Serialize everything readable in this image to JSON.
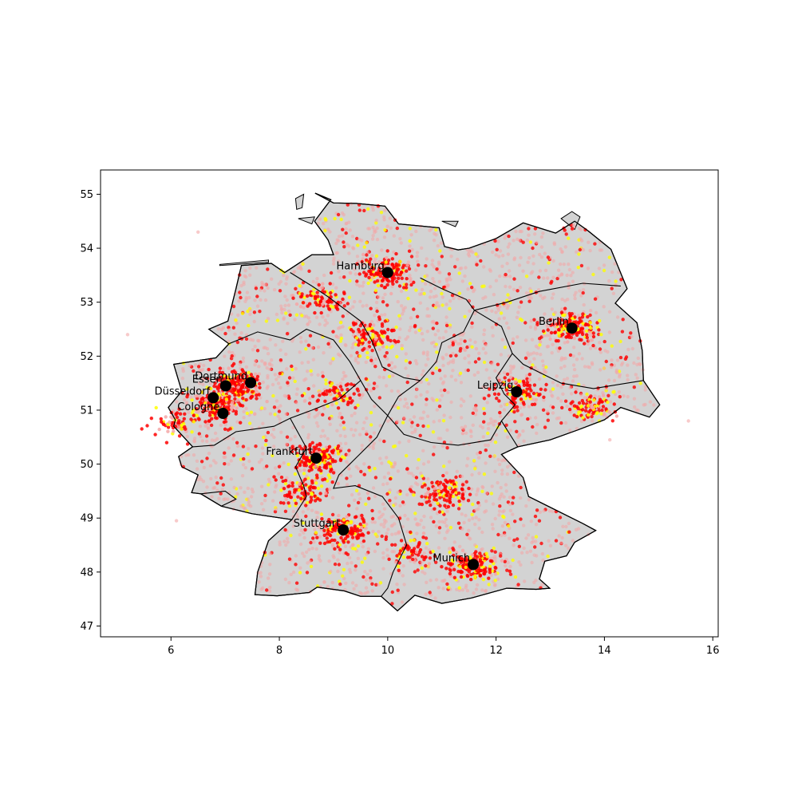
{
  "chart_data": {
    "type": "scatter",
    "title": "",
    "xlabel": "",
    "ylabel": "",
    "xlim": [
      4.7,
      16.1
    ],
    "ylim": [
      46.8,
      55.45
    ],
    "grid": false,
    "x_ticks": [
      6,
      8,
      10,
      12,
      14,
      16
    ],
    "y_ticks": [
      47,
      48,
      49,
      50,
      51,
      52,
      53,
      54,
      55
    ],
    "x_tick_labels": [
      "6",
      "8",
      "10",
      "12",
      "14",
      "16"
    ],
    "y_tick_labels": [
      "47",
      "48",
      "49",
      "50",
      "51",
      "52",
      "53",
      "54",
      "55"
    ],
    "colors": {
      "land": "#d3d3d3",
      "border": "#000000",
      "point_light": "#f4a6a6",
      "point_red": "#ff0000",
      "point_yellow": "#ffff00",
      "city_marker": "#000000"
    },
    "cities": [
      {
        "name": "Hamburg",
        "lon": 10.0,
        "lat": 53.55
      },
      {
        "name": "Berlin",
        "lon": 13.4,
        "lat": 52.52
      },
      {
        "name": "Dortmund",
        "lon": 7.47,
        "lat": 51.51
      },
      {
        "name": "Essen",
        "lon": 7.01,
        "lat": 51.45
      },
      {
        "name": "Düsseldorf",
        "lon": 6.78,
        "lat": 51.23
      },
      {
        "name": "Cologne",
        "lon": 6.96,
        "lat": 50.94
      },
      {
        "name": "Leipzig",
        "lon": 12.38,
        "lat": 51.34
      },
      {
        "name": "Frankfurt",
        "lon": 8.68,
        "lat": 50.11
      },
      {
        "name": "Stuttgart",
        "lon": 9.18,
        "lat": 48.78
      },
      {
        "name": "Munich",
        "lon": 11.58,
        "lat": 48.14
      }
    ],
    "hotspots": [
      {
        "lon": 10.0,
        "lat": 53.55,
        "weight": 1.0
      },
      {
        "lon": 13.4,
        "lat": 52.52,
        "weight": 1.0
      },
      {
        "lon": 7.2,
        "lat": 51.45,
        "weight": 1.2
      },
      {
        "lon": 6.85,
        "lat": 51.1,
        "weight": 1.0
      },
      {
        "lon": 12.38,
        "lat": 51.34,
        "weight": 0.6
      },
      {
        "lon": 8.68,
        "lat": 50.11,
        "weight": 1.0
      },
      {
        "lon": 9.18,
        "lat": 48.78,
        "weight": 1.0
      },
      {
        "lon": 11.58,
        "lat": 48.14,
        "weight": 1.0
      },
      {
        "lon": 11.08,
        "lat": 49.45,
        "weight": 0.7
      },
      {
        "lon": 9.73,
        "lat": 52.37,
        "weight": 0.7
      },
      {
        "lon": 8.8,
        "lat": 53.08,
        "weight": 0.5
      },
      {
        "lon": 13.74,
        "lat": 51.05,
        "weight": 0.5
      },
      {
        "lon": 8.47,
        "lat": 49.49,
        "weight": 0.6
      },
      {
        "lon": 6.08,
        "lat": 50.78,
        "weight": 0.4
      },
      {
        "lon": 9.05,
        "lat": 51.3,
        "weight": 0.4
      },
      {
        "lon": 10.4,
        "lat": 48.37,
        "weight": 0.4
      }
    ],
    "germany_outline": [
      [
        8.66,
        55.02
      ],
      [
        9.0,
        54.84
      ],
      [
        9.42,
        54.83
      ],
      [
        9.95,
        54.78
      ],
      [
        10.2,
        54.45
      ],
      [
        10.95,
        54.38
      ],
      [
        11.05,
        54.03
      ],
      [
        11.3,
        53.97
      ],
      [
        11.5,
        54.0
      ],
      [
        12.0,
        54.18
      ],
      [
        12.5,
        54.47
      ],
      [
        13.1,
        54.28
      ],
      [
        13.45,
        54.5
      ],
      [
        13.7,
        54.32
      ],
      [
        14.12,
        53.98
      ],
      [
        14.42,
        53.25
      ],
      [
        14.2,
        52.98
      ],
      [
        14.6,
        52.62
      ],
      [
        14.7,
        52.1
      ],
      [
        14.72,
        51.55
      ],
      [
        15.02,
        51.1
      ],
      [
        14.83,
        50.87
      ],
      [
        14.3,
        51.05
      ],
      [
        14.0,
        50.82
      ],
      [
        13.5,
        50.63
      ],
      [
        13.0,
        50.45
      ],
      [
        12.4,
        50.32
      ],
      [
        12.1,
        50.18
      ],
      [
        12.5,
        49.75
      ],
      [
        12.6,
        49.4
      ],
      [
        13.0,
        49.2
      ],
      [
        13.6,
        48.9
      ],
      [
        13.84,
        48.77
      ],
      [
        13.45,
        48.55
      ],
      [
        13.3,
        48.3
      ],
      [
        12.9,
        48.2
      ],
      [
        12.8,
        47.87
      ],
      [
        12.99,
        47.7
      ],
      [
        12.74,
        47.68
      ],
      [
        12.2,
        47.7
      ],
      [
        11.55,
        47.52
      ],
      [
        11.0,
        47.42
      ],
      [
        10.5,
        47.57
      ],
      [
        10.18,
        47.28
      ],
      [
        9.88,
        47.55
      ],
      [
        9.5,
        47.55
      ],
      [
        9.2,
        47.65
      ],
      [
        8.7,
        47.72
      ],
      [
        8.55,
        47.62
      ],
      [
        7.96,
        47.56
      ],
      [
        7.55,
        47.58
      ],
      [
        7.6,
        48.0
      ],
      [
        7.8,
        48.58
      ],
      [
        8.23,
        48.97
      ],
      [
        7.5,
        49.08
      ],
      [
        6.93,
        49.22
      ],
      [
        6.55,
        49.45
      ],
      [
        6.38,
        49.47
      ],
      [
        6.5,
        49.8
      ],
      [
        6.2,
        49.95
      ],
      [
        6.14,
        50.14
      ],
      [
        6.4,
        50.32
      ],
      [
        6.05,
        50.7
      ],
      [
        6.08,
        50.82
      ],
      [
        5.95,
        51.05
      ],
      [
        6.2,
        51.35
      ],
      [
        6.05,
        51.85
      ],
      [
        6.83,
        51.97
      ],
      [
        7.07,
        52.23
      ],
      [
        6.7,
        52.5
      ],
      [
        7.05,
        52.65
      ],
      [
        7.2,
        53.25
      ],
      [
        7.3,
        53.68
      ],
      [
        7.85,
        53.72
      ],
      [
        8.1,
        53.55
      ],
      [
        8.6,
        53.88
      ],
      [
        9.0,
        53.88
      ],
      [
        8.9,
        54.15
      ],
      [
        8.65,
        54.5
      ],
      [
        8.95,
        54.9
      ],
      [
        8.66,
        55.02
      ]
    ],
    "state_borders": [
      [
        [
          8.2,
          53.55
        ],
        [
          8.6,
          53.3
        ],
        [
          8.9,
          53.1
        ],
        [
          9.5,
          52.65
        ],
        [
          9.7,
          52.3
        ],
        [
          9.9,
          51.8
        ],
        [
          10.3,
          51.6
        ],
        [
          10.6,
          51.55
        ]
      ],
      [
        [
          10.6,
          53.45
        ],
        [
          11.0,
          53.25
        ],
        [
          11.45,
          53.05
        ],
        [
          11.6,
          52.85
        ]
      ],
      [
        [
          11.6,
          52.85
        ],
        [
          12.2,
          53.0
        ],
        [
          12.8,
          53.2
        ],
        [
          13.6,
          53.35
        ],
        [
          14.3,
          53.3
        ]
      ],
      [
        [
          11.6,
          52.85
        ],
        [
          11.4,
          52.45
        ],
        [
          11.0,
          52.25
        ],
        [
          10.9,
          51.9
        ],
        [
          10.6,
          51.55
        ]
      ],
      [
        [
          11.6,
          52.85
        ],
        [
          12.1,
          52.55
        ],
        [
          12.3,
          52.05
        ],
        [
          12.5,
          51.85
        ],
        [
          12.9,
          51.65
        ],
        [
          13.2,
          51.5
        ],
        [
          13.8,
          51.4
        ],
        [
          14.72,
          51.55
        ]
      ],
      [
        [
          12.3,
          52.05
        ],
        [
          12.0,
          51.6
        ],
        [
          12.15,
          51.3
        ],
        [
          12.35,
          51.1
        ],
        [
          12.1,
          50.8
        ]
      ],
      [
        [
          10.6,
          51.55
        ],
        [
          10.2,
          51.25
        ],
        [
          10.0,
          50.9
        ],
        [
          10.3,
          50.55
        ],
        [
          10.8,
          50.4
        ],
        [
          11.3,
          50.35
        ],
        [
          11.9,
          50.45
        ],
        [
          12.1,
          50.8
        ],
        [
          12.4,
          50.32
        ]
      ],
      [
        [
          7.07,
          52.23
        ],
        [
          7.6,
          52.45
        ],
        [
          8.2,
          52.3
        ],
        [
          8.5,
          52.5
        ],
        [
          9.0,
          52.3
        ],
        [
          9.3,
          51.9
        ],
        [
          9.5,
          51.55
        ],
        [
          9.1,
          51.2
        ],
        [
          8.6,
          51.0
        ],
        [
          8.2,
          50.85
        ],
        [
          7.9,
          50.7
        ],
        [
          7.2,
          50.6
        ],
        [
          6.8,
          50.35
        ],
        [
          6.4,
          50.32
        ]
      ],
      [
        [
          8.2,
          50.85
        ],
        [
          8.5,
          50.3
        ],
        [
          8.3,
          49.95
        ],
        [
          8.45,
          49.6
        ],
        [
          8.5,
          49.4
        ]
      ],
      [
        [
          9.5,
          51.55
        ],
        [
          9.7,
          51.2
        ],
        [
          10.0,
          50.9
        ],
        [
          9.8,
          50.5
        ],
        [
          9.5,
          50.2
        ],
        [
          9.1,
          49.8
        ],
        [
          9.0,
          49.55
        ],
        [
          9.4,
          49.6
        ],
        [
          9.9,
          49.4
        ],
        [
          10.2,
          49.0
        ],
        [
          10.35,
          48.5
        ],
        [
          10.1,
          48.0
        ],
        [
          10.0,
          47.7
        ],
        [
          9.88,
          47.55
        ]
      ],
      [
        [
          6.55,
          49.45
        ],
        [
          7.0,
          49.5
        ],
        [
          7.2,
          49.35
        ],
        [
          6.93,
          49.22
        ]
      ],
      [
        [
          8.5,
          49.4
        ],
        [
          8.23,
          48.97
        ]
      ]
    ],
    "islands": [
      [
        [
          8.3,
          54.92
        ],
        [
          8.45,
          55.0
        ],
        [
          8.42,
          54.75
        ],
        [
          8.32,
          54.72
        ],
        [
          8.3,
          54.92
        ]
      ],
      [
        [
          8.35,
          54.55
        ],
        [
          8.65,
          54.58
        ],
        [
          8.6,
          54.45
        ],
        [
          8.35,
          54.55
        ]
      ],
      [
        [
          11.0,
          54.5
        ],
        [
          11.3,
          54.5
        ],
        [
          11.25,
          54.4
        ],
        [
          11.0,
          54.5
        ]
      ],
      [
        [
          13.2,
          54.55
        ],
        [
          13.4,
          54.68
        ],
        [
          13.55,
          54.58
        ],
        [
          13.45,
          54.35
        ],
        [
          13.2,
          54.55
        ]
      ],
      [
        [
          6.9,
          53.7
        ],
        [
          7.8,
          53.78
        ],
        [
          7.8,
          53.74
        ],
        [
          6.9,
          53.68
        ],
        [
          6.9,
          53.7
        ]
      ]
    ]
  }
}
